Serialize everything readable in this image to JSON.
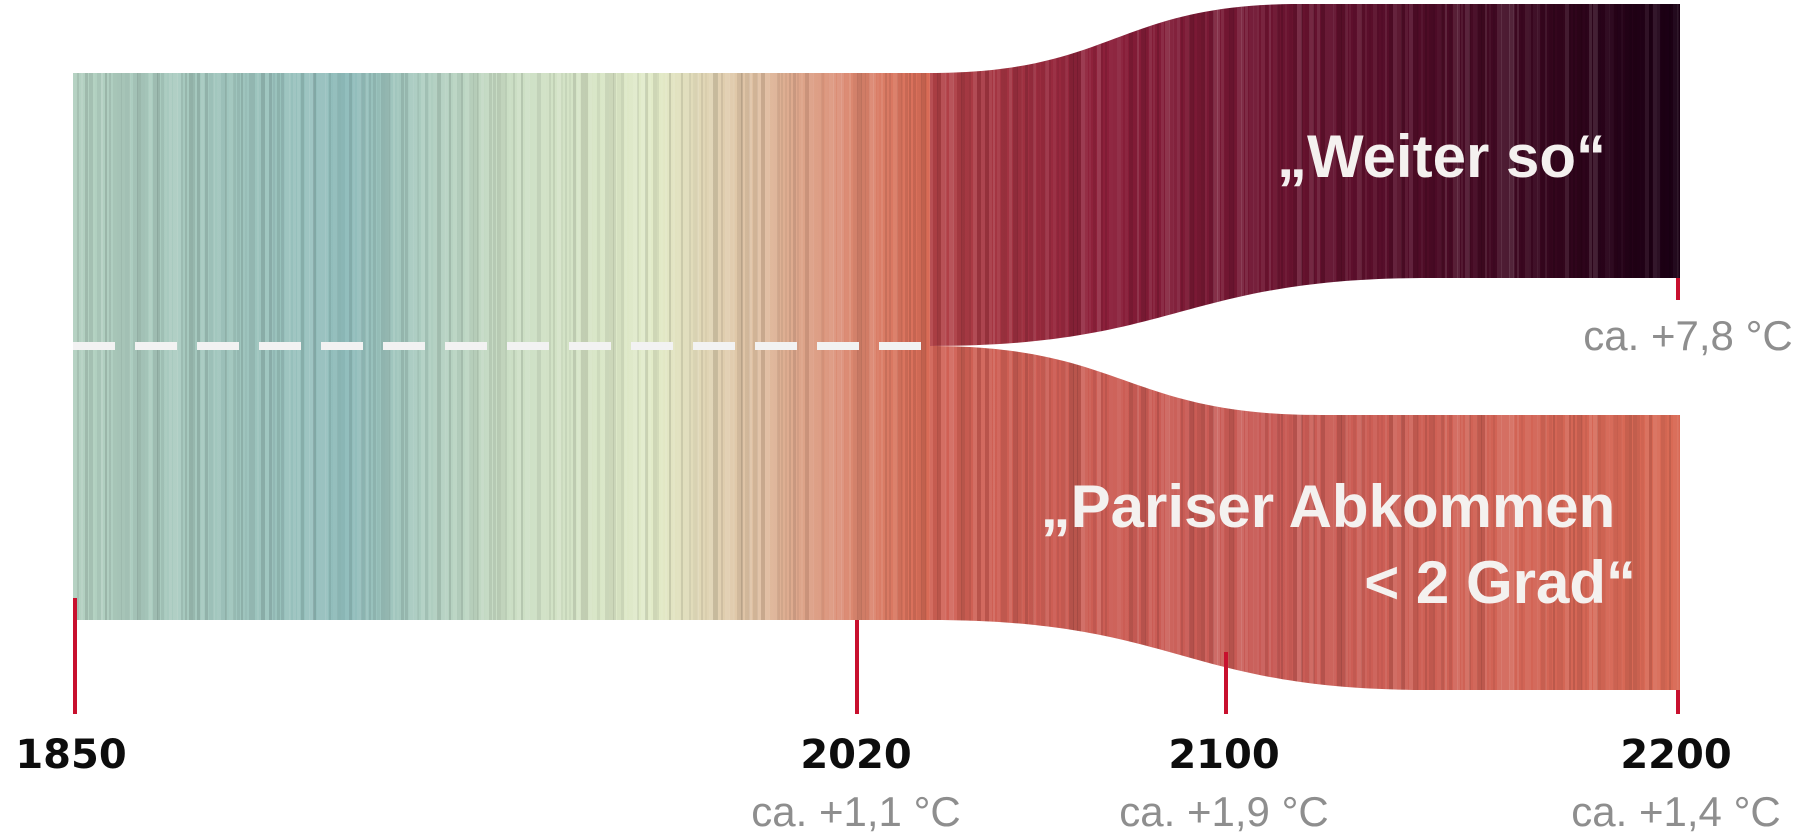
{
  "chart_data": {
    "type": "area",
    "title": "",
    "xlabel": "",
    "ylabel": "",
    "x_ticks": [
      {
        "year": "1850",
        "temp": ""
      },
      {
        "year": "2020",
        "temp": "ca. +1,1 °C"
      },
      {
        "year": "2100",
        "temp": "ca. +1,9 °C"
      },
      {
        "year": "2200",
        "temp": "ca. +1,4 °C"
      }
    ],
    "history": {
      "start": 1850,
      "end": 2020
    },
    "scenarios": [
      {
        "label_lines": [
          "„Weiter so“"
        ],
        "end_year": 2200,
        "end_temp_label": "ca. +7,8 °C",
        "end_warming": 7.8
      },
      {
        "label_lines": [
          "„Pariser Abkommen",
          "< 2 Grad“"
        ],
        "end_year": 2200,
        "end_temp_label": "ca. +1,4 °C",
        "end_warming": 1.4,
        "peak_year": 2100,
        "peak_warming": 1.9
      }
    ],
    "colors": {
      "cool": "#8fbcbb",
      "neutral": "#e2ebc8",
      "warm": "#d96a55",
      "hot_dark": "#1a0014",
      "tick_marker": "#c8102e",
      "dash_line": "#f2f2f2"
    }
  }
}
